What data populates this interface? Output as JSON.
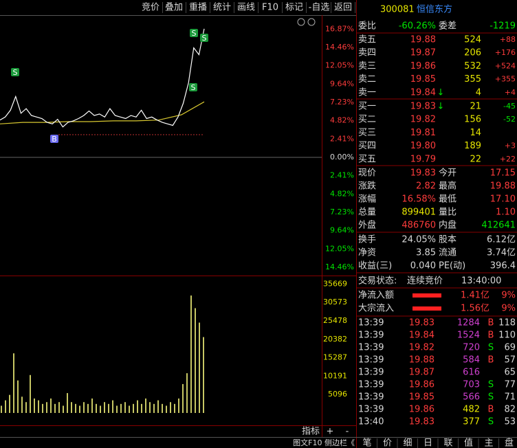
{
  "toolbar": [
    "竞价",
    "叠加",
    "重播",
    "统计",
    "画线",
    "F10",
    "标记",
    "-自选",
    "返回"
  ],
  "header": {
    "code": "300081",
    "name": "恒信东方"
  },
  "ratio": {
    "label": "委比",
    "value": "-60.26%",
    "label2": "委差",
    "value2": "-1219"
  },
  "sells": [
    {
      "name": "卖五",
      "price": "19.88",
      "volume": "524",
      "change": "+88"
    },
    {
      "name": "卖四",
      "price": "19.87",
      "volume": "206",
      "change": "+176"
    },
    {
      "name": "卖三",
      "price": "19.86",
      "volume": "532",
      "change": "+524"
    },
    {
      "name": "卖二",
      "price": "19.85",
      "volume": "355",
      "change": "+355"
    },
    {
      "name": "卖一",
      "price": "19.84",
      "trend": "↓",
      "volume": "4",
      "change": "+4"
    }
  ],
  "buys": [
    {
      "name": "买一",
      "price": "19.83",
      "trend": "↓",
      "volume": "21",
      "change": "-45"
    },
    {
      "name": "买二",
      "price": "19.82",
      "volume": "156",
      "change": "-52"
    },
    {
      "name": "买三",
      "price": "19.81",
      "volume": "14"
    },
    {
      "name": "买四",
      "price": "19.80",
      "volume": "189",
      "change": "+3"
    },
    {
      "name": "买五",
      "price": "19.79",
      "volume": "22",
      "change": "+22"
    }
  ],
  "quote": [
    [
      "现价",
      "19.83",
      "今开",
      "17.15"
    ],
    [
      "涨跌",
      "2.82",
      "最高",
      "19.88"
    ],
    [
      "涨幅",
      "16.58%",
      "最低",
      "17.10"
    ],
    [
      "总量",
      "899401",
      "量比",
      "1.10"
    ],
    [
      "外盘",
      "486760",
      "内盘",
      "412641"
    ]
  ],
  "fundamentals": [
    [
      "换手",
      "24.05%",
      "股本",
      "6.12亿"
    ],
    [
      "净资",
      "3.85",
      "流通",
      "3.74亿"
    ],
    [
      "收益(三)",
      "0.040",
      "PE(动)",
      "396.4"
    ]
  ],
  "status": {
    "label": "交易状态:",
    "value": "连续竞价",
    "time": "13:40:00"
  },
  "flows": [
    {
      "name": "净流入额",
      "amount": "1.41亿",
      "pct": "9%"
    },
    {
      "name": "大宗流入",
      "amount": "1.56亿",
      "pct": "9%"
    }
  ],
  "ticks": [
    {
      "time": "13:39",
      "price": "19.83",
      "volume": "1284",
      "side": "B",
      "count": "118"
    },
    {
      "time": "13:39",
      "price": "19.84",
      "volume": "1524",
      "side": "B",
      "count": "110"
    },
    {
      "time": "13:39",
      "price": "19.82",
      "volume": "720",
      "side": "S",
      "count": "69"
    },
    {
      "time": "13:39",
      "price": "19.88",
      "volume": "584",
      "side": "B",
      "count": "57"
    },
    {
      "time": "13:39",
      "price": "19.87",
      "volume": "616",
      "count": "65"
    },
    {
      "time": "13:39",
      "price": "19.86",
      "volume": "703",
      "side": "S",
      "count": "77"
    },
    {
      "time": "13:39",
      "price": "19.85",
      "volume": "566",
      "side": "S",
      "count": "71"
    },
    {
      "time": "13:39",
      "price": "19.86",
      "volume": "482",
      "side": "B",
      "count": "82"
    },
    {
      "time": "13:40",
      "price": "19.83",
      "volume": "377",
      "side": "S",
      "count": "53"
    }
  ],
  "tabs": [
    "笔",
    "价",
    "细",
    "日",
    "联",
    "值",
    "主",
    "盘"
  ],
  "bottom": {
    "indicator": "指标",
    "plus": "+",
    "minus": "-",
    "sidebar": "图文F10 侧边栏《"
  },
  "chart": {
    "ylim": [
      -15.45,
      18.7
    ],
    "yticks": [
      {
        "value": 16.87,
        "label": "16.87%"
      },
      {
        "value": 14.46,
        "label": "14.46%"
      },
      {
        "value": 12.05,
        "label": "12.05%"
      },
      {
        "value": 9.64,
        "label": "9.64%"
      },
      {
        "value": 7.23,
        "label": "7.23%"
      },
      {
        "value": 4.82,
        "label": "4.82%"
      },
      {
        "value": 2.41,
        "label": "2.41%"
      },
      {
        "value": 0,
        "label": "0.00%"
      },
      {
        "value": -2.41,
        "label": "2.41%"
      },
      {
        "value": -4.82,
        "label": "4.82%"
      },
      {
        "value": -7.23,
        "label": "7.23%"
      },
      {
        "value": -9.64,
        "label": "9.64%"
      },
      {
        "value": -12.05,
        "label": "12.05%"
      },
      {
        "value": -14.46,
        "label": "14.46%"
      }
    ],
    "vlim": [
      0,
      37650
    ],
    "vticks": [
      35669,
      30573,
      25478,
      20382,
      15287,
      10191,
      5096
    ],
    "price_pct": [
      4.9,
      5.3,
      6.2,
      8.0,
      5.8,
      6.4,
      5.5,
      5.3,
      5.1,
      4.6,
      4.4,
      5.0,
      4.0,
      4.6,
      4.8,
      5.1,
      5.5,
      6.1,
      5.5,
      5.7,
      5.3,
      6.4,
      5.5,
      5.3,
      5.1,
      5.5,
      5.3,
      6.2,
      5.1,
      5.3,
      4.9,
      4.6,
      4.4,
      4.2,
      5.3,
      7.1,
      9.8,
      14.4,
      13.5,
      16.9
    ],
    "avg_pct": [
      4.4,
      4.6,
      4.6,
      4.7,
      4.7,
      4.8,
      4.8,
      4.9,
      5.6,
      7.3
    ],
    "volume": [
      2000,
      3500,
      5000,
      16500,
      9000,
      4500,
      3000,
      10500,
      4000,
      3500,
      2500,
      3000,
      4000,
      2500,
      3000,
      2000,
      5500,
      3000,
      2500,
      2000,
      3000,
      2500,
      4000,
      2500,
      2000,
      3000,
      2500,
      3500,
      2000,
      2500,
      3000,
      2000,
      2500,
      3500,
      2500,
      4000,
      3000,
      2500,
      3500,
      2500,
      2000,
      3000,
      2500,
      4000,
      8000,
      11000,
      32500,
      29000,
      25000,
      21000
    ],
    "markers": [
      "S",
      "B",
      "S",
      "S",
      "S"
    ]
  }
}
